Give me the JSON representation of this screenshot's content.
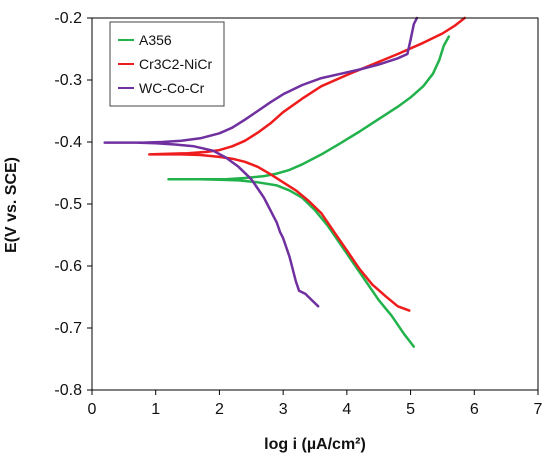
{
  "chart_data": {
    "type": "line",
    "title": "",
    "xlabel": "log i (µA/cm²)",
    "ylabel": "E(V vs. SCE)",
    "xlim": [
      0,
      7
    ],
    "ylim": [
      -0.8,
      -0.2
    ],
    "x_ticks": [
      0,
      1,
      2,
      3,
      4,
      5,
      6,
      7
    ],
    "y_ticks": [
      -0.8,
      -0.7,
      -0.6,
      -0.5,
      -0.4,
      -0.3,
      -0.2
    ],
    "x_tick_labels": [
      "0",
      "1",
      "2",
      "3",
      "4",
      "5",
      "6",
      "7"
    ],
    "y_tick_labels": [
      "-0.8",
      "-0.7",
      "-0.6",
      "-0.5",
      "-0.4",
      "-0.3",
      "-0.2"
    ],
    "grid": false,
    "legend_position": "top-left",
    "series": [
      {
        "name": "A356",
        "color": "#22b24c",
        "x": [
          5.05,
          4.9,
          4.7,
          4.5,
          4.3,
          4.1,
          3.9,
          3.7,
          3.5,
          3.3,
          3.1,
          2.9,
          2.6,
          2.3,
          2.0,
          1.7,
          1.4,
          1.2,
          1.5,
          1.8,
          2.1,
          2.4,
          2.7,
          2.9,
          3.1,
          3.3,
          3.6,
          3.9,
          4.2,
          4.5,
          4.8,
          5.0,
          5.2,
          5.35,
          5.45,
          5.52,
          5.6
        ],
        "y": [
          -0.73,
          -0.71,
          -0.68,
          -0.655,
          -0.625,
          -0.595,
          -0.565,
          -0.535,
          -0.51,
          -0.49,
          -0.478,
          -0.47,
          -0.465,
          -0.462,
          -0.461,
          -0.46,
          -0.46,
          -0.46,
          -0.46,
          -0.46,
          -0.46,
          -0.458,
          -0.455,
          -0.451,
          -0.445,
          -0.436,
          -0.42,
          -0.402,
          -0.383,
          -0.363,
          -0.343,
          -0.328,
          -0.31,
          -0.29,
          -0.268,
          -0.245,
          -0.23
        ]
      },
      {
        "name": "Cr3C2-NiCr",
        "color": "#ee1c1c",
        "x": [
          4.98,
          4.8,
          4.6,
          4.4,
          4.2,
          4.0,
          3.8,
          3.6,
          3.4,
          3.2,
          3.0,
          2.8,
          2.6,
          2.4,
          2.2,
          2.0,
          1.7,
          1.4,
          1.1,
          0.9,
          1.2,
          1.5,
          1.8,
          2.0,
          2.2,
          2.4,
          2.6,
          2.8,
          3.0,
          3.3,
          3.6,
          4.0,
          4.4,
          4.8,
          5.2,
          5.5,
          5.7,
          5.85
        ],
        "y": [
          -0.672,
          -0.665,
          -0.648,
          -0.63,
          -0.605,
          -0.575,
          -0.545,
          -0.515,
          -0.495,
          -0.478,
          -0.465,
          -0.452,
          -0.44,
          -0.432,
          -0.427,
          -0.424,
          -0.421,
          -0.42,
          -0.42,
          -0.42,
          -0.419,
          -0.418,
          -0.416,
          -0.413,
          -0.407,
          -0.398,
          -0.385,
          -0.37,
          -0.352,
          -0.33,
          -0.31,
          -0.292,
          -0.275,
          -0.258,
          -0.24,
          -0.225,
          -0.212,
          -0.2
        ]
      },
      {
        "name": "WC-Co-Cr",
        "color": "#7030a0",
        "x": [
          3.55,
          3.45,
          3.35,
          3.25,
          3.2,
          3.15,
          3.1,
          3.05,
          3.0,
          2.95,
          2.9,
          2.85,
          2.8,
          2.75,
          2.7,
          2.6,
          2.5,
          2.3,
          2.1,
          1.9,
          1.6,
          1.3,
          1.0,
          0.7,
          0.4,
          0.2,
          0.5,
          0.8,
          1.1,
          1.4,
          1.7,
          2.0,
          2.2,
          2.4,
          2.6,
          2.8,
          3.0,
          3.3,
          3.6,
          3.9,
          4.2,
          4.5,
          4.8,
          4.95,
          5.0,
          5.05,
          5.1
        ],
        "y": [
          -0.665,
          -0.655,
          -0.645,
          -0.64,
          -0.625,
          -0.605,
          -0.585,
          -0.57,
          -0.555,
          -0.545,
          -0.53,
          -0.52,
          -0.51,
          -0.5,
          -0.49,
          -0.475,
          -0.46,
          -0.44,
          -0.425,
          -0.414,
          -0.407,
          -0.404,
          -0.402,
          -0.401,
          -0.401,
          -0.401,
          -0.401,
          -0.401,
          -0.4,
          -0.398,
          -0.394,
          -0.386,
          -0.377,
          -0.364,
          -0.35,
          -0.336,
          -0.323,
          -0.308,
          -0.297,
          -0.29,
          -0.283,
          -0.275,
          -0.265,
          -0.258,
          -0.235,
          -0.21,
          -0.2
        ]
      }
    ]
  }
}
